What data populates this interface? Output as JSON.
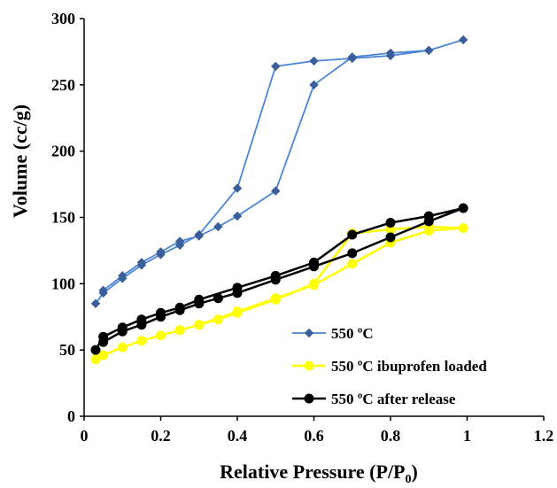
{
  "chart_data": {
    "type": "line",
    "xlabel": "Relative Pressure (P/P",
    "xlabel_subscript": "0",
    "xlabel_suffix": ")",
    "ylabel": "Volume (cc/g)",
    "xlim": [
      0,
      1.2
    ],
    "ylim": [
      0,
      300
    ],
    "x_ticks": [
      "0",
      "0.2",
      "0.4",
      "0.6",
      "0.8",
      "1",
      "1.2"
    ],
    "y_ticks": [
      "0",
      "50",
      "100",
      "150",
      "200",
      "250",
      "300"
    ],
    "grid": false,
    "legend_position": "bottom-right",
    "series": [
      {
        "name": "550 ºC",
        "color": "#4a86d4",
        "marker": "diamond",
        "points": [
          [
            0.03,
            85
          ],
          [
            0.05,
            93
          ],
          [
            0.1,
            104
          ],
          [
            0.15,
            114
          ],
          [
            0.2,
            122
          ],
          [
            0.25,
            129
          ],
          [
            0.3,
            137
          ],
          [
            0.4,
            172
          ],
          [
            0.5,
            264
          ],
          [
            0.6,
            268
          ],
          [
            0.7,
            270
          ],
          [
            0.8,
            272
          ],
          [
            0.9,
            276
          ],
          [
            0.99,
            284
          ],
          [
            0.9,
            276
          ],
          [
            0.8,
            274
          ],
          [
            0.7,
            271
          ],
          [
            0.6,
            250
          ],
          [
            0.5,
            170
          ],
          [
            0.4,
            151
          ],
          [
            0.35,
            143
          ],
          [
            0.3,
            136
          ],
          [
            0.25,
            132
          ],
          [
            0.2,
            124
          ],
          [
            0.15,
            116
          ],
          [
            0.1,
            106
          ],
          [
            0.05,
            95
          ]
        ]
      },
      {
        "name": "550 ºC ibuprofen loaded",
        "color": "#ffff00",
        "marker": "circle",
        "points": [
          [
            0.03,
            43
          ],
          [
            0.05,
            46
          ],
          [
            0.1,
            52
          ],
          [
            0.15,
            57
          ],
          [
            0.2,
            61
          ],
          [
            0.25,
            65
          ],
          [
            0.3,
            69
          ],
          [
            0.35,
            73
          ],
          [
            0.4,
            78
          ],
          [
            0.5,
            88
          ],
          [
            0.6,
            100
          ],
          [
            0.7,
            138
          ],
          [
            0.8,
            141
          ],
          [
            0.9,
            143
          ],
          [
            0.99,
            142
          ],
          [
            0.9,
            140
          ],
          [
            0.8,
            131
          ],
          [
            0.7,
            115
          ],
          [
            0.6,
            99
          ],
          [
            0.5,
            89
          ],
          [
            0.4,
            79
          ],
          [
            0.3,
            69
          ],
          [
            0.25,
            65
          ]
        ]
      },
      {
        "name": "550 ºC after release",
        "color": "#000000",
        "marker": "circle",
        "points": [
          [
            0.03,
            50
          ],
          [
            0.05,
            60
          ],
          [
            0.1,
            67
          ],
          [
            0.15,
            73
          ],
          [
            0.2,
            78
          ],
          [
            0.25,
            82
          ],
          [
            0.3,
            88
          ],
          [
            0.4,
            97
          ],
          [
            0.5,
            106
          ],
          [
            0.6,
            116
          ],
          [
            0.7,
            137
          ],
          [
            0.8,
            146
          ],
          [
            0.9,
            151
          ],
          [
            0.99,
            157
          ],
          [
            0.9,
            147
          ],
          [
            0.8,
            135
          ],
          [
            0.7,
            123
          ],
          [
            0.6,
            113
          ],
          [
            0.5,
            103
          ],
          [
            0.4,
            93
          ],
          [
            0.35,
            89
          ],
          [
            0.3,
            85
          ],
          [
            0.25,
            80
          ],
          [
            0.2,
            75
          ],
          [
            0.15,
            69
          ],
          [
            0.1,
            64
          ],
          [
            0.05,
            56
          ]
        ]
      }
    ]
  }
}
